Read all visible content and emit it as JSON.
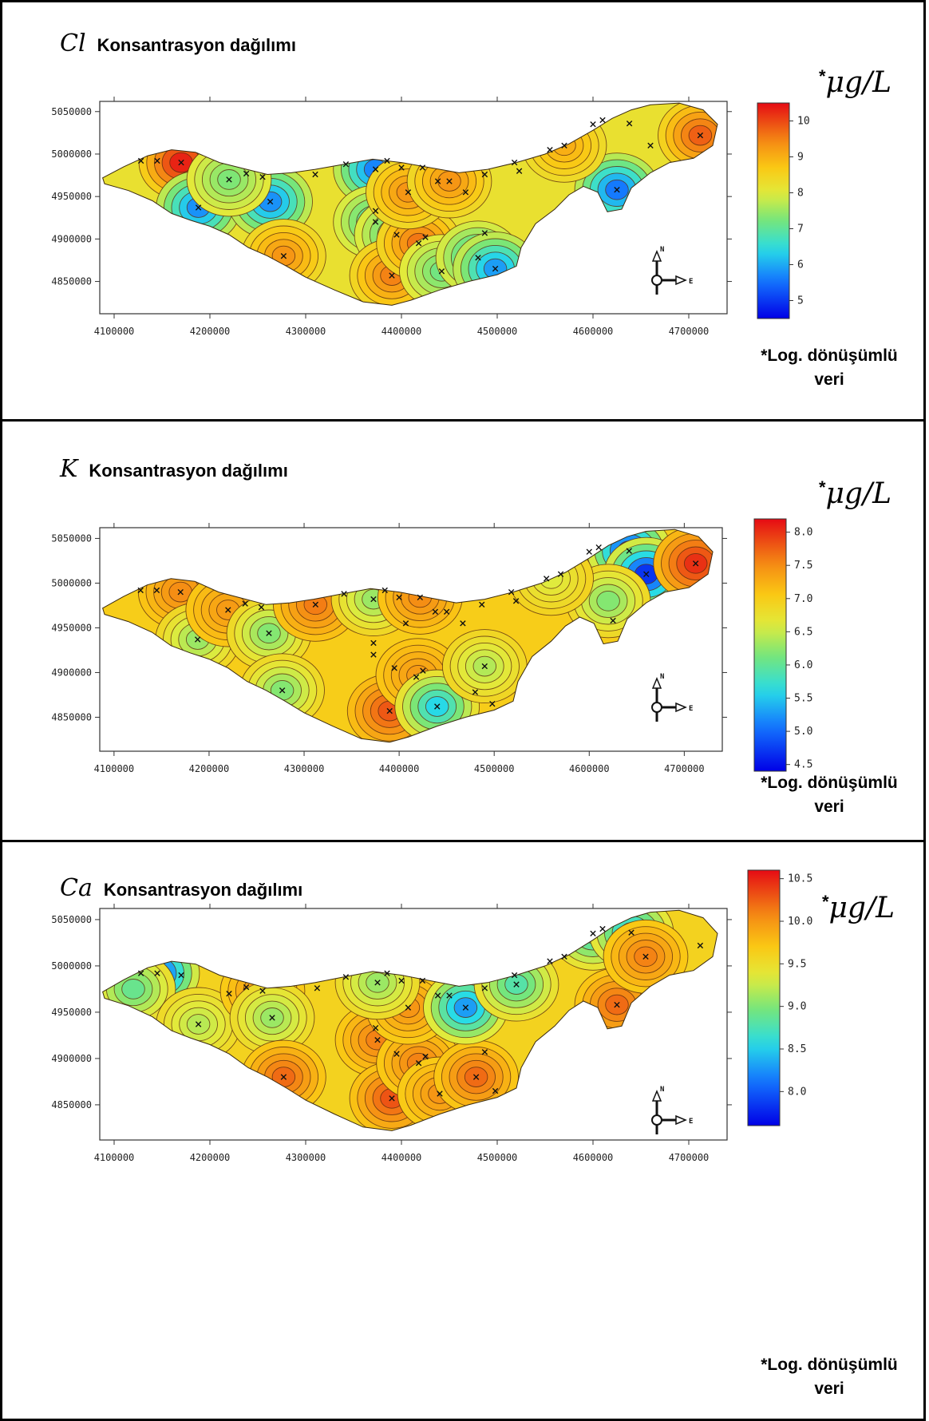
{
  "panels": [
    {
      "symbol": "Cl",
      "title": "Konsantrasyon dağılımı",
      "unit": "μg/L",
      "unit_prefix": "*",
      "note_line1": "*Log. dönüşümlü",
      "note_line2": "veri",
      "x_ticks": [
        "4100000",
        "4200000",
        "4300000",
        "4400000",
        "4500000",
        "4600000",
        "4700000"
      ],
      "y_ticks": [
        "5050000",
        "5000000",
        "4950000",
        "4900000",
        "4850000"
      ],
      "colorbar_ticks": [
        "10",
        "9",
        "8",
        "7",
        "6",
        "5"
      ],
      "colorbar_range": [
        4.5,
        10.5
      ],
      "base_level": 8.2,
      "hotspots": [
        {
          "x": 4170000,
          "y": 4990000,
          "v": 10.3
        },
        {
          "x": 4188000,
          "y": 4937000,
          "v": 5.8
        },
        {
          "x": 4263000,
          "y": 4944000,
          "v": 5.8
        },
        {
          "x": 4277000,
          "y": 4880000,
          "v": 9.3
        },
        {
          "x": 4373000,
          "y": 4982000,
          "v": 5.7
        },
        {
          "x": 4373000,
          "y": 4920000,
          "v": 6.8
        },
        {
          "x": 4395000,
          "y": 4905000,
          "v": 6.9
        },
        {
          "x": 4390000,
          "y": 4857000,
          "v": 9.5
        },
        {
          "x": 4418000,
          "y": 4895000,
          "v": 9.6
        },
        {
          "x": 4407000,
          "y": 4955000,
          "v": 9.3
        },
        {
          "x": 4442000,
          "y": 4862000,
          "v": 7.2
        },
        {
          "x": 4480000,
          "y": 4878000,
          "v": 6.6
        },
        {
          "x": 4498000,
          "y": 4865000,
          "v": 5.9
        },
        {
          "x": 4625000,
          "y": 4958000,
          "v": 5.6
        },
        {
          "x": 4712000,
          "y": 5022000,
          "v": 9.8
        },
        {
          "x": 4570000,
          "y": 5010000,
          "v": 9.0
        },
        {
          "x": 4220000,
          "y": 4970000,
          "v": 7.3
        },
        {
          "x": 4450000,
          "y": 4968000,
          "v": 9.3
        }
      ],
      "samples": [
        {
          "x": 4128000,
          "y": 4992000
        },
        {
          "x": 4145000,
          "y": 4992000
        },
        {
          "x": 4170000,
          "y": 4990000
        },
        {
          "x": 4188000,
          "y": 4937000
        },
        {
          "x": 4220000,
          "y": 4970000
        },
        {
          "x": 4238000,
          "y": 4977000
        },
        {
          "x": 4255000,
          "y": 4973000
        },
        {
          "x": 4263000,
          "y": 4944000
        },
        {
          "x": 4277000,
          "y": 4880000
        },
        {
          "x": 4310000,
          "y": 4976000
        },
        {
          "x": 4342000,
          "y": 4988000
        },
        {
          "x": 4373000,
          "y": 4982000
        },
        {
          "x": 4373000,
          "y": 4933000
        },
        {
          "x": 4373000,
          "y": 4920000
        },
        {
          "x": 4385000,
          "y": 4992000
        },
        {
          "x": 4395000,
          "y": 4905000
        },
        {
          "x": 4390000,
          "y": 4857000
        },
        {
          "x": 4400000,
          "y": 4984000
        },
        {
          "x": 4407000,
          "y": 4955000
        },
        {
          "x": 4418000,
          "y": 4895000
        },
        {
          "x": 4425000,
          "y": 4902000
        },
        {
          "x": 4422000,
          "y": 4984000
        },
        {
          "x": 4438000,
          "y": 4968000
        },
        {
          "x": 4442000,
          "y": 4862000
        },
        {
          "x": 4450000,
          "y": 4968000
        },
        {
          "x": 4467000,
          "y": 4955000
        },
        {
          "x": 4480000,
          "y": 4878000
        },
        {
          "x": 4487000,
          "y": 4976000
        },
        {
          "x": 4487000,
          "y": 4907000
        },
        {
          "x": 4498000,
          "y": 4865000
        },
        {
          "x": 4518000,
          "y": 4990000
        },
        {
          "x": 4523000,
          "y": 4980000
        },
        {
          "x": 4555000,
          "y": 5005000
        },
        {
          "x": 4570000,
          "y": 5010000
        },
        {
          "x": 4600000,
          "y": 5035000
        },
        {
          "x": 4610000,
          "y": 5040000
        },
        {
          "x": 4625000,
          "y": 4958000
        },
        {
          "x": 4638000,
          "y": 5036000
        },
        {
          "x": 4660000,
          "y": 5010000
        },
        {
          "x": 4712000,
          "y": 5022000
        }
      ]
    },
    {
      "symbol": "K",
      "title": "Konsantrasyon dağılımı",
      "unit": "μg/L",
      "unit_prefix": "*",
      "note_line1": "*Log. dönüşümlü",
      "note_line2": "veri",
      "x_ticks": [
        "4100000",
        "4200000",
        "4300000",
        "4400000",
        "4500000",
        "4600000",
        "4700000"
      ],
      "y_ticks": [
        "5050000",
        "5000000",
        "4950000",
        "4900000",
        "4850000"
      ],
      "colorbar_ticks": [
        "8.0",
        "7.5",
        "7.0",
        "6.5",
        "6.0",
        "5.5",
        "5.0",
        "4.5"
      ],
      "colorbar_range": [
        4.4,
        8.2
      ],
      "base_level": 7.0,
      "hotspots": [
        {
          "x": 4170000,
          "y": 4990000,
          "v": 7.5
        },
        {
          "x": 4188000,
          "y": 4937000,
          "v": 6.3
        },
        {
          "x": 4220000,
          "y": 4970000,
          "v": 7.4
        },
        {
          "x": 4263000,
          "y": 4944000,
          "v": 6.2
        },
        {
          "x": 4277000,
          "y": 4880000,
          "v": 6.2
        },
        {
          "x": 4312000,
          "y": 4976000,
          "v": 7.6
        },
        {
          "x": 4373000,
          "y": 4982000,
          "v": 6.3
        },
        {
          "x": 4390000,
          "y": 4857000,
          "v": 7.8
        },
        {
          "x": 4420000,
          "y": 4897000,
          "v": 7.4
        },
        {
          "x": 4440000,
          "y": 4862000,
          "v": 5.6
        },
        {
          "x": 4422000,
          "y": 4984000,
          "v": 7.5
        },
        {
          "x": 4490000,
          "y": 4907000,
          "v": 6.4
        },
        {
          "x": 4642000,
          "y": 5036000,
          "v": 4.8
        },
        {
          "x": 4660000,
          "y": 5010000,
          "v": 4.7
        },
        {
          "x": 4712000,
          "y": 5022000,
          "v": 8.0
        },
        {
          "x": 4620000,
          "y": 4980000,
          "v": 6.2
        },
        {
          "x": 4560000,
          "y": 5005000,
          "v": 6.6
        }
      ],
      "samples": [
        {
          "x": 4128000,
          "y": 4992000
        },
        {
          "x": 4145000,
          "y": 4992000
        },
        {
          "x": 4170000,
          "y": 4990000
        },
        {
          "x": 4188000,
          "y": 4937000
        },
        {
          "x": 4220000,
          "y": 4970000
        },
        {
          "x": 4238000,
          "y": 4977000
        },
        {
          "x": 4255000,
          "y": 4973000
        },
        {
          "x": 4263000,
          "y": 4944000
        },
        {
          "x": 4277000,
          "y": 4880000
        },
        {
          "x": 4312000,
          "y": 4976000
        },
        {
          "x": 4342000,
          "y": 4988000
        },
        {
          "x": 4373000,
          "y": 4982000
        },
        {
          "x": 4373000,
          "y": 4933000
        },
        {
          "x": 4373000,
          "y": 4920000
        },
        {
          "x": 4385000,
          "y": 4992000
        },
        {
          "x": 4395000,
          "y": 4905000
        },
        {
          "x": 4390000,
          "y": 4857000
        },
        {
          "x": 4400000,
          "y": 4984000
        },
        {
          "x": 4407000,
          "y": 4955000
        },
        {
          "x": 4418000,
          "y": 4895000
        },
        {
          "x": 4425000,
          "y": 4902000
        },
        {
          "x": 4422000,
          "y": 4984000
        },
        {
          "x": 4438000,
          "y": 4968000
        },
        {
          "x": 4440000,
          "y": 4862000
        },
        {
          "x": 4450000,
          "y": 4968000
        },
        {
          "x": 4467000,
          "y": 4955000
        },
        {
          "x": 4480000,
          "y": 4878000
        },
        {
          "x": 4487000,
          "y": 4976000
        },
        {
          "x": 4490000,
          "y": 4907000
        },
        {
          "x": 4498000,
          "y": 4865000
        },
        {
          "x": 4518000,
          "y": 4990000
        },
        {
          "x": 4523000,
          "y": 4980000
        },
        {
          "x": 4555000,
          "y": 5005000
        },
        {
          "x": 4570000,
          "y": 5010000
        },
        {
          "x": 4600000,
          "y": 5035000
        },
        {
          "x": 4610000,
          "y": 5040000
        },
        {
          "x": 4625000,
          "y": 4958000
        },
        {
          "x": 4642000,
          "y": 5036000
        },
        {
          "x": 4660000,
          "y": 5010000
        },
        {
          "x": 4712000,
          "y": 5022000
        }
      ]
    },
    {
      "symbol": "Ca",
      "title": "Konsantrasyon dağılımı",
      "unit": "μg/L",
      "unit_prefix": "*",
      "note_line1": "*Log. dönüşümlü",
      "note_line2": "veri",
      "x_ticks": [
        "4100000",
        "4200000",
        "4300000",
        "4400000",
        "4500000",
        "4600000",
        "4700000"
      ],
      "y_ticks": [
        "5050000",
        "5000000",
        "4950000",
        "4900000",
        "4850000"
      ],
      "colorbar_ticks": [
        "10.5",
        "10.0",
        "9.5",
        "9.0",
        "8.5",
        "8.0"
      ],
      "colorbar_range": [
        7.6,
        10.6
      ],
      "base_level": 9.6,
      "hotspots": [
        {
          "x": 4145000,
          "y": 4992000,
          "v": 8.0
        },
        {
          "x": 4120000,
          "y": 4975000,
          "v": 8.9
        },
        {
          "x": 4188000,
          "y": 4937000,
          "v": 9.2
        },
        {
          "x": 4255000,
          "y": 4973000,
          "v": 10.0
        },
        {
          "x": 4265000,
          "y": 4944000,
          "v": 9.1
        },
        {
          "x": 4277000,
          "y": 4880000,
          "v": 10.2
        },
        {
          "x": 4375000,
          "y": 4920000,
          "v": 10.1
        },
        {
          "x": 4390000,
          "y": 4857000,
          "v": 10.3
        },
        {
          "x": 4418000,
          "y": 4895000,
          "v": 10.1
        },
        {
          "x": 4440000,
          "y": 4862000,
          "v": 10.0
        },
        {
          "x": 4478000,
          "y": 4880000,
          "v": 10.2
        },
        {
          "x": 4407000,
          "y": 4955000,
          "v": 10.0
        },
        {
          "x": 4467000,
          "y": 4955000,
          "v": 8.3
        },
        {
          "x": 4520000,
          "y": 4980000,
          "v": 8.8
        },
        {
          "x": 4600000,
          "y": 5035000,
          "v": 8.7
        },
        {
          "x": 4640000,
          "y": 5036000,
          "v": 8.5
        },
        {
          "x": 4625000,
          "y": 4958000,
          "v": 10.2
        },
        {
          "x": 4655000,
          "y": 5010000,
          "v": 10.1
        },
        {
          "x": 4375000,
          "y": 4982000,
          "v": 9.1
        }
      ],
      "samples": [
        {
          "x": 4128000,
          "y": 4992000
        },
        {
          "x": 4145000,
          "y": 4992000
        },
        {
          "x": 4170000,
          "y": 4990000
        },
        {
          "x": 4188000,
          "y": 4937000
        },
        {
          "x": 4220000,
          "y": 4970000
        },
        {
          "x": 4238000,
          "y": 4977000
        },
        {
          "x": 4255000,
          "y": 4973000
        },
        {
          "x": 4265000,
          "y": 4944000
        },
        {
          "x": 4277000,
          "y": 4880000
        },
        {
          "x": 4312000,
          "y": 4976000
        },
        {
          "x": 4342000,
          "y": 4988000
        },
        {
          "x": 4375000,
          "y": 4982000
        },
        {
          "x": 4373000,
          "y": 4933000
        },
        {
          "x": 4375000,
          "y": 4920000
        },
        {
          "x": 4385000,
          "y": 4992000
        },
        {
          "x": 4395000,
          "y": 4905000
        },
        {
          "x": 4390000,
          "y": 4857000
        },
        {
          "x": 4400000,
          "y": 4984000
        },
        {
          "x": 4407000,
          "y": 4955000
        },
        {
          "x": 4418000,
          "y": 4895000
        },
        {
          "x": 4425000,
          "y": 4902000
        },
        {
          "x": 4422000,
          "y": 4984000
        },
        {
          "x": 4438000,
          "y": 4968000
        },
        {
          "x": 4440000,
          "y": 4862000
        },
        {
          "x": 4450000,
          "y": 4968000
        },
        {
          "x": 4467000,
          "y": 4955000
        },
        {
          "x": 4478000,
          "y": 4880000
        },
        {
          "x": 4487000,
          "y": 4976000
        },
        {
          "x": 4487000,
          "y": 4907000
        },
        {
          "x": 4498000,
          "y": 4865000
        },
        {
          "x": 4518000,
          "y": 4990000
        },
        {
          "x": 4520000,
          "y": 4980000
        },
        {
          "x": 4555000,
          "y": 5005000
        },
        {
          "x": 4570000,
          "y": 5010000
        },
        {
          "x": 4600000,
          "y": 5035000
        },
        {
          "x": 4610000,
          "y": 5040000
        },
        {
          "x": 4625000,
          "y": 4958000
        },
        {
          "x": 4640000,
          "y": 5036000
        },
        {
          "x": 4655000,
          "y": 5010000
        },
        {
          "x": 4712000,
          "y": 5022000
        }
      ]
    }
  ],
  "north_label": "N",
  "east_label": "E",
  "boundary": [
    [
      4088000,
      4972000
    ],
    [
      4110000,
      4985000
    ],
    [
      4135000,
      4998000
    ],
    [
      4160000,
      5005000
    ],
    [
      4185000,
      5002000
    ],
    [
      4210000,
      4990000
    ],
    [
      4235000,
      4983000
    ],
    [
      4260000,
      4976000
    ],
    [
      4285000,
      4978000
    ],
    [
      4310000,
      4982000
    ],
    [
      4340000,
      4988000
    ],
    [
      4370000,
      4994000
    ],
    [
      4400000,
      4990000
    ],
    [
      4430000,
      4984000
    ],
    [
      4460000,
      4978000
    ],
    [
      4490000,
      4982000
    ],
    [
      4520000,
      4990000
    ],
    [
      4550000,
      5000000
    ],
    [
      4575000,
      5012000
    ],
    [
      4600000,
      5028000
    ],
    [
      4620000,
      5042000
    ],
    [
      4640000,
      5052000
    ],
    [
      4660000,
      5058000
    ],
    [
      4690000,
      5060000
    ],
    [
      4715000,
      5052000
    ],
    [
      4730000,
      5035000
    ],
    [
      4725000,
      5010000
    ],
    [
      4705000,
      4995000
    ],
    [
      4680000,
      4990000
    ],
    [
      4660000,
      4978000
    ],
    [
      4640000,
      4960000
    ],
    [
      4630000,
      4935000
    ],
    [
      4615000,
      4932000
    ],
    [
      4605000,
      4955000
    ],
    [
      4590000,
      4962000
    ],
    [
      4575000,
      4952000
    ],
    [
      4560000,
      4935000
    ],
    [
      4540000,
      4918000
    ],
    [
      4525000,
      4890000
    ],
    [
      4520000,
      4868000
    ],
    [
      4500000,
      4858000
    ],
    [
      4470000,
      4850000
    ],
    [
      4440000,
      4840000
    ],
    [
      4410000,
      4828000
    ],
    [
      4390000,
      4822000
    ],
    [
      4360000,
      4826000
    ],
    [
      4330000,
      4840000
    ],
    [
      4300000,
      4855000
    ],
    [
      4280000,
      4868000
    ],
    [
      4260000,
      4880000
    ],
    [
      4240000,
      4890000
    ],
    [
      4220000,
      4905000
    ],
    [
      4200000,
      4915000
    ],
    [
      4180000,
      4922000
    ],
    [
      4160000,
      4930000
    ],
    [
      4140000,
      4945000
    ],
    [
      4115000,
      4957000
    ],
    [
      4090000,
      4965000
    ]
  ]
}
